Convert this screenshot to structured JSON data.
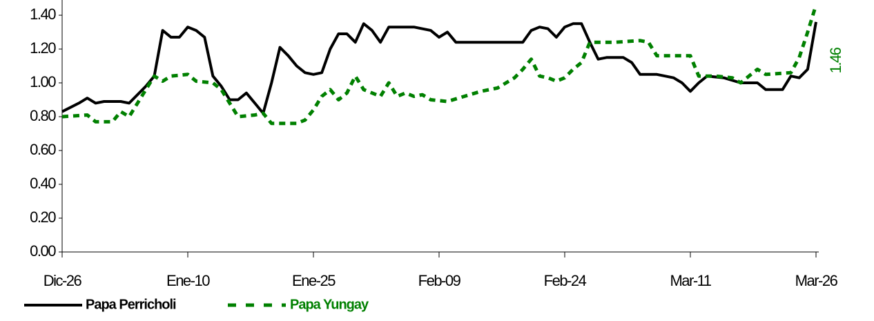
{
  "chart_data": {
    "type": "line",
    "x": [
      0,
      2,
      3,
      4,
      5,
      7,
      8,
      10,
      11,
      12,
      13,
      14,
      15,
      16,
      17,
      18,
      19,
      20,
      21,
      22,
      23,
      24,
      25,
      26,
      27,
      28,
      29,
      30,
      31,
      32,
      33,
      34,
      35,
      36,
      37,
      38,
      39,
      40,
      42,
      44,
      45,
      46,
      47,
      49,
      51,
      53,
      55,
      56,
      57,
      58,
      59,
      60,
      61,
      62,
      63,
      64,
      65,
      67,
      68,
      69,
      71,
      73,
      74,
      75,
      76,
      77,
      79,
      81,
      83,
      84,
      85,
      86,
      87,
      88,
      89,
      90
    ],
    "xlim": [
      0,
      90
    ],
    "xticks": [
      {
        "value": 0,
        "label": "Dic-26"
      },
      {
        "value": 15,
        "label": "Ene-10"
      },
      {
        "value": 30,
        "label": "Ene-25"
      },
      {
        "value": 45,
        "label": "Feb-09"
      },
      {
        "value": 60,
        "label": "Feb-24"
      },
      {
        "value": 75,
        "label": "Mar-11"
      },
      {
        "value": 90,
        "label": "Mar-26"
      }
    ],
    "ylim": [
      0,
      1.49
    ],
    "yticks": [
      {
        "value": 0,
        "label": "0.00"
      },
      {
        "value": 0.2,
        "label": "0.20"
      },
      {
        "value": 0.4,
        "label": "0.40"
      },
      {
        "value": 0.6,
        "label": "0.60"
      },
      {
        "value": 0.8,
        "label": "0.80"
      },
      {
        "value": 1,
        "label": "1.00"
      },
      {
        "value": 1.2,
        "label": "1.20"
      },
      {
        "value": 1.4,
        "label": "1.40"
      }
    ],
    "series": [
      {
        "name": "Papa Perricholi",
        "color": "#000000",
        "dash": false,
        "x": [
          0,
          2,
          3,
          4,
          5,
          7,
          8,
          10,
          11,
          12,
          13,
          14,
          15,
          16,
          17,
          18,
          19,
          20,
          21,
          22,
          23,
          24,
          25,
          26,
          27,
          28,
          29,
          30,
          31,
          32,
          33,
          34,
          35,
          36,
          37,
          38,
          39,
          40,
          42,
          44,
          45,
          46,
          47,
          49,
          51,
          53,
          55,
          56,
          57,
          58,
          59,
          60,
          61,
          62,
          63,
          64,
          65,
          67,
          68,
          69,
          71,
          73,
          74,
          75,
          76,
          77,
          79,
          81,
          83,
          84,
          85,
          86,
          87,
          88,
          89,
          90
        ],
        "values": [
          0.83,
          0.88,
          0.91,
          0.88,
          0.89,
          0.89,
          0.88,
          0.98,
          1.04,
          1.31,
          1.27,
          1.27,
          1.33,
          1.31,
          1.27,
          1.04,
          0.98,
          0.9,
          0.9,
          0.94,
          0.88,
          0.82,
          1.0,
          1.21,
          1.16,
          1.1,
          1.06,
          1.05,
          1.06,
          1.2,
          1.29,
          1.29,
          1.24,
          1.35,
          1.31,
          1.24,
          1.33,
          1.33,
          1.33,
          1.31,
          1.27,
          1.3,
          1.24,
          1.24,
          1.24,
          1.24,
          1.24,
          1.31,
          1.33,
          1.32,
          1.27,
          1.33,
          1.35,
          1.35,
          1.24,
          1.14,
          1.15,
          1.15,
          1.12,
          1.05,
          1.05,
          1.03,
          1.0,
          0.95,
          1.0,
          1.04,
          1.03,
          1.0,
          1.0,
          0.96,
          0.96,
          0.96,
          1.04,
          1.03,
          1.08,
          1.36
        ]
      },
      {
        "name": "Papa Yungay",
        "color": "#008000",
        "dash": true,
        "x": [
          0,
          3,
          4,
          6,
          7,
          8,
          9,
          10,
          11,
          12,
          13,
          15,
          16,
          18,
          19,
          20,
          21,
          23,
          24,
          25,
          28,
          29,
          30,
          31,
          32,
          33,
          34,
          35,
          36,
          37,
          38,
          39,
          40,
          41,
          42,
          43,
          44,
          46,
          48,
          50,
          52,
          54,
          55,
          56,
          57,
          58,
          59,
          60,
          61,
          62,
          63,
          66,
          69,
          70,
          71,
          75,
          76,
          78,
          80,
          81,
          82,
          83,
          84,
          87,
          88,
          89,
          90
        ],
        "values": [
          0.8,
          0.81,
          0.77,
          0.77,
          0.83,
          0.8,
          0.88,
          0.96,
          1.04,
          1.01,
          1.04,
          1.05,
          1.01,
          1.0,
          0.96,
          0.88,
          0.8,
          0.81,
          0.82,
          0.76,
          0.76,
          0.78,
          0.84,
          0.92,
          0.96,
          0.9,
          0.94,
          1.04,
          0.96,
          0.94,
          0.92,
          1.0,
          0.92,
          0.94,
          0.92,
          0.93,
          0.9,
          0.89,
          0.92,
          0.95,
          0.97,
          1.03,
          1.08,
          1.14,
          1.04,
          1.03,
          1.01,
          1.03,
          1.08,
          1.12,
          1.24,
          1.24,
          1.25,
          1.24,
          1.16,
          1.16,
          1.04,
          1.04,
          1.03,
          1.0,
          1.04,
          1.08,
          1.05,
          1.06,
          1.15,
          1.3,
          1.46
        ]
      }
    ],
    "annotation": "1.46"
  }
}
